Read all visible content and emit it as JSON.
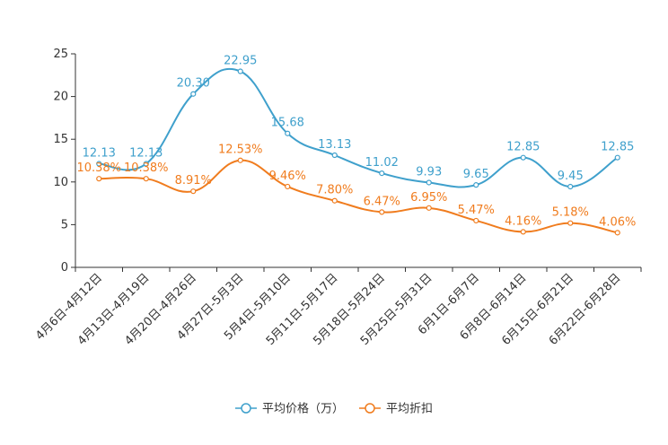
{
  "chart_data": {
    "type": "line",
    "title": "",
    "xlabel": "",
    "ylabel": "",
    "ylim": [
      0,
      25
    ],
    "yticks": [
      0,
      5,
      10,
      15,
      20,
      25
    ],
    "categories": [
      "4月6日-4月12日",
      "4月13日-4月19日",
      "4月20日-4月26日",
      "4月27日-5月3日",
      "5月4日-5月10日",
      "5月11日-5月17日",
      "5月18日-5月24日",
      "5月25日-5月31日",
      "6月1日-6月7日",
      "6月8日-6月14日",
      "6月15日-6月21日",
      "6月22日-6月28日"
    ],
    "series": [
      {
        "name": "平均价格（万）",
        "color": "#3fa0cc",
        "values": [
          12.13,
          12.13,
          20.3,
          22.95,
          15.68,
          13.13,
          11.02,
          9.93,
          9.65,
          12.85,
          9.45,
          12.85
        ],
        "labels": [
          "12.13",
          "12.13",
          "20.30",
          "22.95",
          "15.68",
          "13.13",
          "11.02",
          "9.93",
          "9.65",
          "12.85",
          "9.45",
          "12.85"
        ]
      },
      {
        "name": "平均折扣",
        "color": "#f07c1e",
        "values": [
          10.38,
          10.38,
          8.91,
          12.53,
          9.46,
          7.8,
          6.47,
          6.95,
          5.47,
          4.16,
          5.18,
          4.06
        ],
        "labels": [
          "10.38%",
          "10.38%",
          "8.91%",
          "12.53%",
          "9.46%",
          "7.80%",
          "6.47%",
          "6.95%",
          "5.47%",
          "4.16%",
          "5.18%",
          "4.06%"
        ]
      }
    ],
    "legend_position": "bottom-center"
  }
}
